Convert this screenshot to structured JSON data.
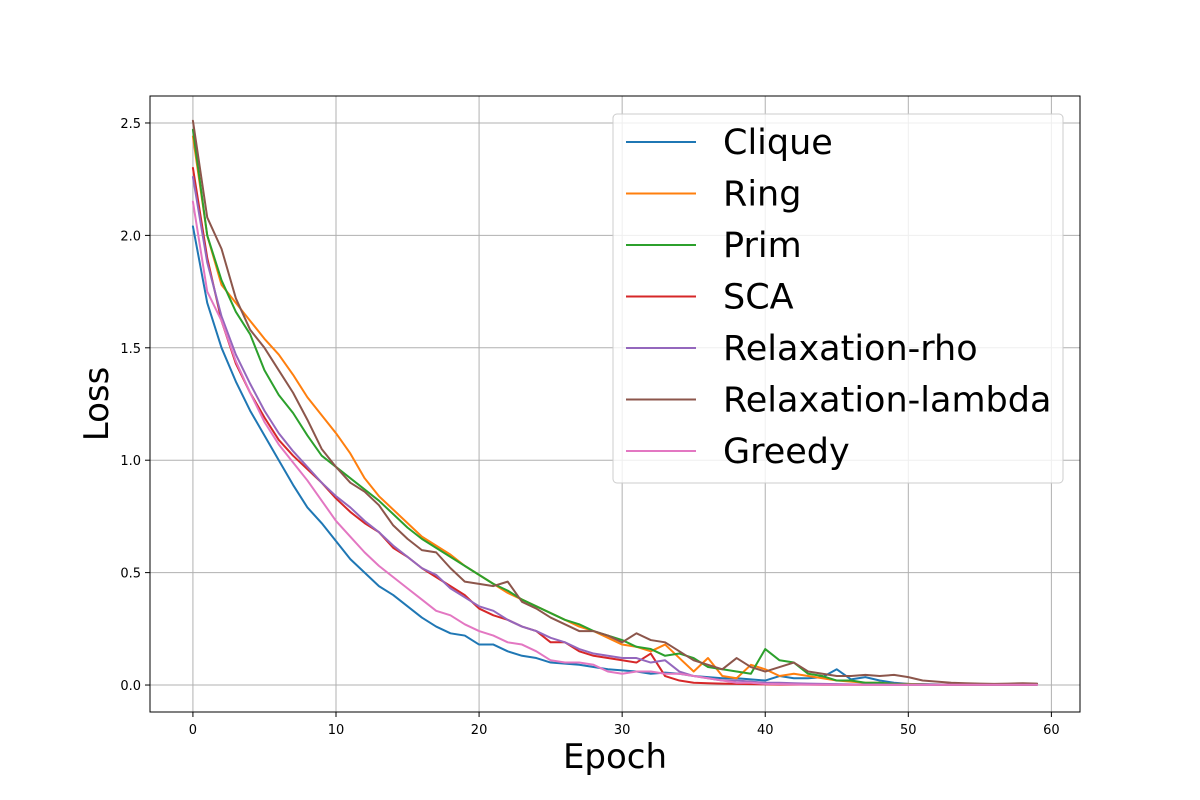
{
  "chart_data": {
    "type": "line",
    "title": "",
    "xlabel": "Epoch",
    "ylabel": "Loss",
    "xlim": [
      -3,
      62
    ],
    "ylim": [
      -0.12,
      2.62
    ],
    "xticks": [
      0,
      10,
      20,
      30,
      40,
      50,
      60
    ],
    "yticks": [
      0.0,
      0.5,
      1.0,
      1.5,
      2.0,
      2.5
    ],
    "ytick_labels": [
      "0.0",
      "0.5",
      "1.0",
      "1.5",
      "2.0",
      "2.5"
    ],
    "grid": true,
    "legend_position": "upper-right",
    "x": [
      0,
      1,
      2,
      3,
      4,
      5,
      6,
      7,
      8,
      9,
      10,
      11,
      12,
      13,
      14,
      15,
      16,
      17,
      18,
      19,
      20,
      21,
      22,
      23,
      24,
      25,
      26,
      27,
      28,
      29,
      30,
      31,
      32,
      33,
      34,
      35,
      36,
      37,
      38,
      39,
      40,
      41,
      42,
      43,
      44,
      45,
      46,
      47,
      48,
      49,
      50,
      51,
      52,
      53,
      54,
      55,
      56,
      57,
      58,
      59
    ],
    "series": [
      {
        "name": "Clique",
        "color": "#1f77b4",
        "values": [
          2.04,
          1.7,
          1.5,
          1.35,
          1.22,
          1.11,
          1.0,
          0.89,
          0.79,
          0.72,
          0.64,
          0.56,
          0.5,
          0.44,
          0.4,
          0.35,
          0.3,
          0.26,
          0.23,
          0.22,
          0.18,
          0.18,
          0.15,
          0.13,
          0.12,
          0.1,
          0.095,
          0.09,
          0.08,
          0.07,
          0.065,
          0.06,
          0.05,
          0.055,
          0.05,
          0.04,
          0.035,
          0.03,
          0.03,
          0.025,
          0.02,
          0.04,
          0.03,
          0.03,
          0.035,
          0.07,
          0.025,
          0.035,
          0.02,
          0.01,
          0.005,
          0.004,
          0.003,
          0.002,
          0.002,
          0.002,
          0.001,
          0.001,
          0.001,
          0.001
        ]
      },
      {
        "name": "Ring",
        "color": "#ff7f0e",
        "values": [
          2.44,
          2.0,
          1.78,
          1.7,
          1.62,
          1.54,
          1.47,
          1.38,
          1.28,
          1.2,
          1.12,
          1.03,
          0.92,
          0.84,
          0.78,
          0.72,
          0.66,
          0.62,
          0.58,
          0.53,
          0.49,
          0.45,
          0.41,
          0.38,
          0.35,
          0.32,
          0.29,
          0.26,
          0.24,
          0.21,
          0.18,
          0.17,
          0.15,
          0.18,
          0.12,
          0.06,
          0.12,
          0.04,
          0.03,
          0.09,
          0.07,
          0.04,
          0.05,
          0.04,
          0.03,
          0.02,
          0.015,
          0.01,
          0.01,
          0.005,
          0.005,
          0.003,
          0.002,
          0.002,
          0.001,
          0.001,
          0.001,
          0.001,
          0.001,
          0.001
        ]
      },
      {
        "name": "Prim",
        "color": "#2ca02c",
        "values": [
          2.47,
          2.0,
          1.8,
          1.66,
          1.56,
          1.4,
          1.29,
          1.21,
          1.11,
          1.02,
          0.97,
          0.92,
          0.87,
          0.82,
          0.76,
          0.7,
          0.65,
          0.61,
          0.57,
          0.53,
          0.49,
          0.45,
          0.42,
          0.38,
          0.35,
          0.32,
          0.29,
          0.27,
          0.24,
          0.22,
          0.2,
          0.17,
          0.16,
          0.13,
          0.14,
          0.12,
          0.08,
          0.07,
          0.06,
          0.05,
          0.16,
          0.11,
          0.1,
          0.05,
          0.04,
          0.02,
          0.02,
          0.01,
          0.01,
          0.005,
          0.004,
          0.003,
          0.002,
          0.002,
          0.002,
          0.001,
          0.001,
          0.001,
          0.001,
          0.001
        ]
      },
      {
        "name": "SCA",
        "color": "#d62728",
        "values": [
          2.3,
          1.9,
          1.62,
          1.43,
          1.3,
          1.19,
          1.09,
          1.02,
          0.96,
          0.9,
          0.83,
          0.77,
          0.72,
          0.68,
          0.61,
          0.57,
          0.52,
          0.48,
          0.44,
          0.4,
          0.34,
          0.31,
          0.29,
          0.26,
          0.24,
          0.19,
          0.19,
          0.15,
          0.13,
          0.12,
          0.11,
          0.1,
          0.14,
          0.04,
          0.02,
          0.01,
          0.008,
          0.006,
          0.005,
          0.004,
          0.003,
          0.002,
          0.002,
          0.002,
          0.001,
          0.001,
          0.001,
          0.001,
          0.001,
          0.001,
          0.001,
          0.001,
          0.001,
          0.001,
          0.001,
          0.001,
          0.001,
          0.001,
          0.001,
          0.001
        ]
      },
      {
        "name": "Relaxation-rho",
        "color": "#9467bd",
        "values": [
          2.26,
          1.88,
          1.64,
          1.47,
          1.34,
          1.22,
          1.12,
          1.04,
          0.97,
          0.9,
          0.84,
          0.79,
          0.73,
          0.68,
          0.62,
          0.57,
          0.52,
          0.49,
          0.43,
          0.39,
          0.35,
          0.33,
          0.29,
          0.26,
          0.24,
          0.21,
          0.19,
          0.16,
          0.14,
          0.13,
          0.12,
          0.12,
          0.1,
          0.11,
          0.06,
          0.04,
          0.03,
          0.02,
          0.02,
          0.015,
          0.01,
          0.01,
          0.008,
          0.006,
          0.005,
          0.004,
          0.003,
          0.002,
          0.002,
          0.001,
          0.001,
          0.001,
          0.001,
          0.001,
          0.001,
          0.001,
          0.001,
          0.001,
          0.001,
          0.001
        ]
      },
      {
        "name": "Relaxation-lambda",
        "color": "#8c564b",
        "values": [
          2.51,
          2.08,
          1.94,
          1.72,
          1.58,
          1.5,
          1.4,
          1.3,
          1.18,
          1.05,
          0.97,
          0.9,
          0.86,
          0.8,
          0.71,
          0.65,
          0.6,
          0.59,
          0.52,
          0.46,
          0.45,
          0.44,
          0.46,
          0.37,
          0.34,
          0.3,
          0.27,
          0.24,
          0.24,
          0.22,
          0.19,
          0.23,
          0.2,
          0.19,
          0.15,
          0.11,
          0.09,
          0.07,
          0.12,
          0.08,
          0.06,
          0.08,
          0.1,
          0.06,
          0.05,
          0.04,
          0.04,
          0.045,
          0.04,
          0.045,
          0.035,
          0.02,
          0.015,
          0.01,
          0.008,
          0.006,
          0.005,
          0.006,
          0.008,
          0.006
        ]
      },
      {
        "name": "Greedy",
        "color": "#e377c2",
        "values": [
          2.15,
          1.75,
          1.62,
          1.44,
          1.3,
          1.17,
          1.07,
          0.99,
          0.91,
          0.82,
          0.73,
          0.66,
          0.59,
          0.53,
          0.48,
          0.43,
          0.38,
          0.33,
          0.31,
          0.27,
          0.24,
          0.22,
          0.19,
          0.18,
          0.15,
          0.11,
          0.1,
          0.1,
          0.09,
          0.06,
          0.05,
          0.06,
          0.06,
          0.05,
          0.05,
          0.04,
          0.03,
          0.02,
          0.01,
          0.01,
          0.005,
          0.004,
          0.003,
          0.002,
          0.002,
          0.001,
          0.001,
          0.001,
          0.001,
          0.001,
          0.001,
          0.001,
          0.001,
          0.001,
          0.001,
          0.001,
          0.001,
          0.001,
          0.001,
          0.001
        ]
      }
    ]
  }
}
